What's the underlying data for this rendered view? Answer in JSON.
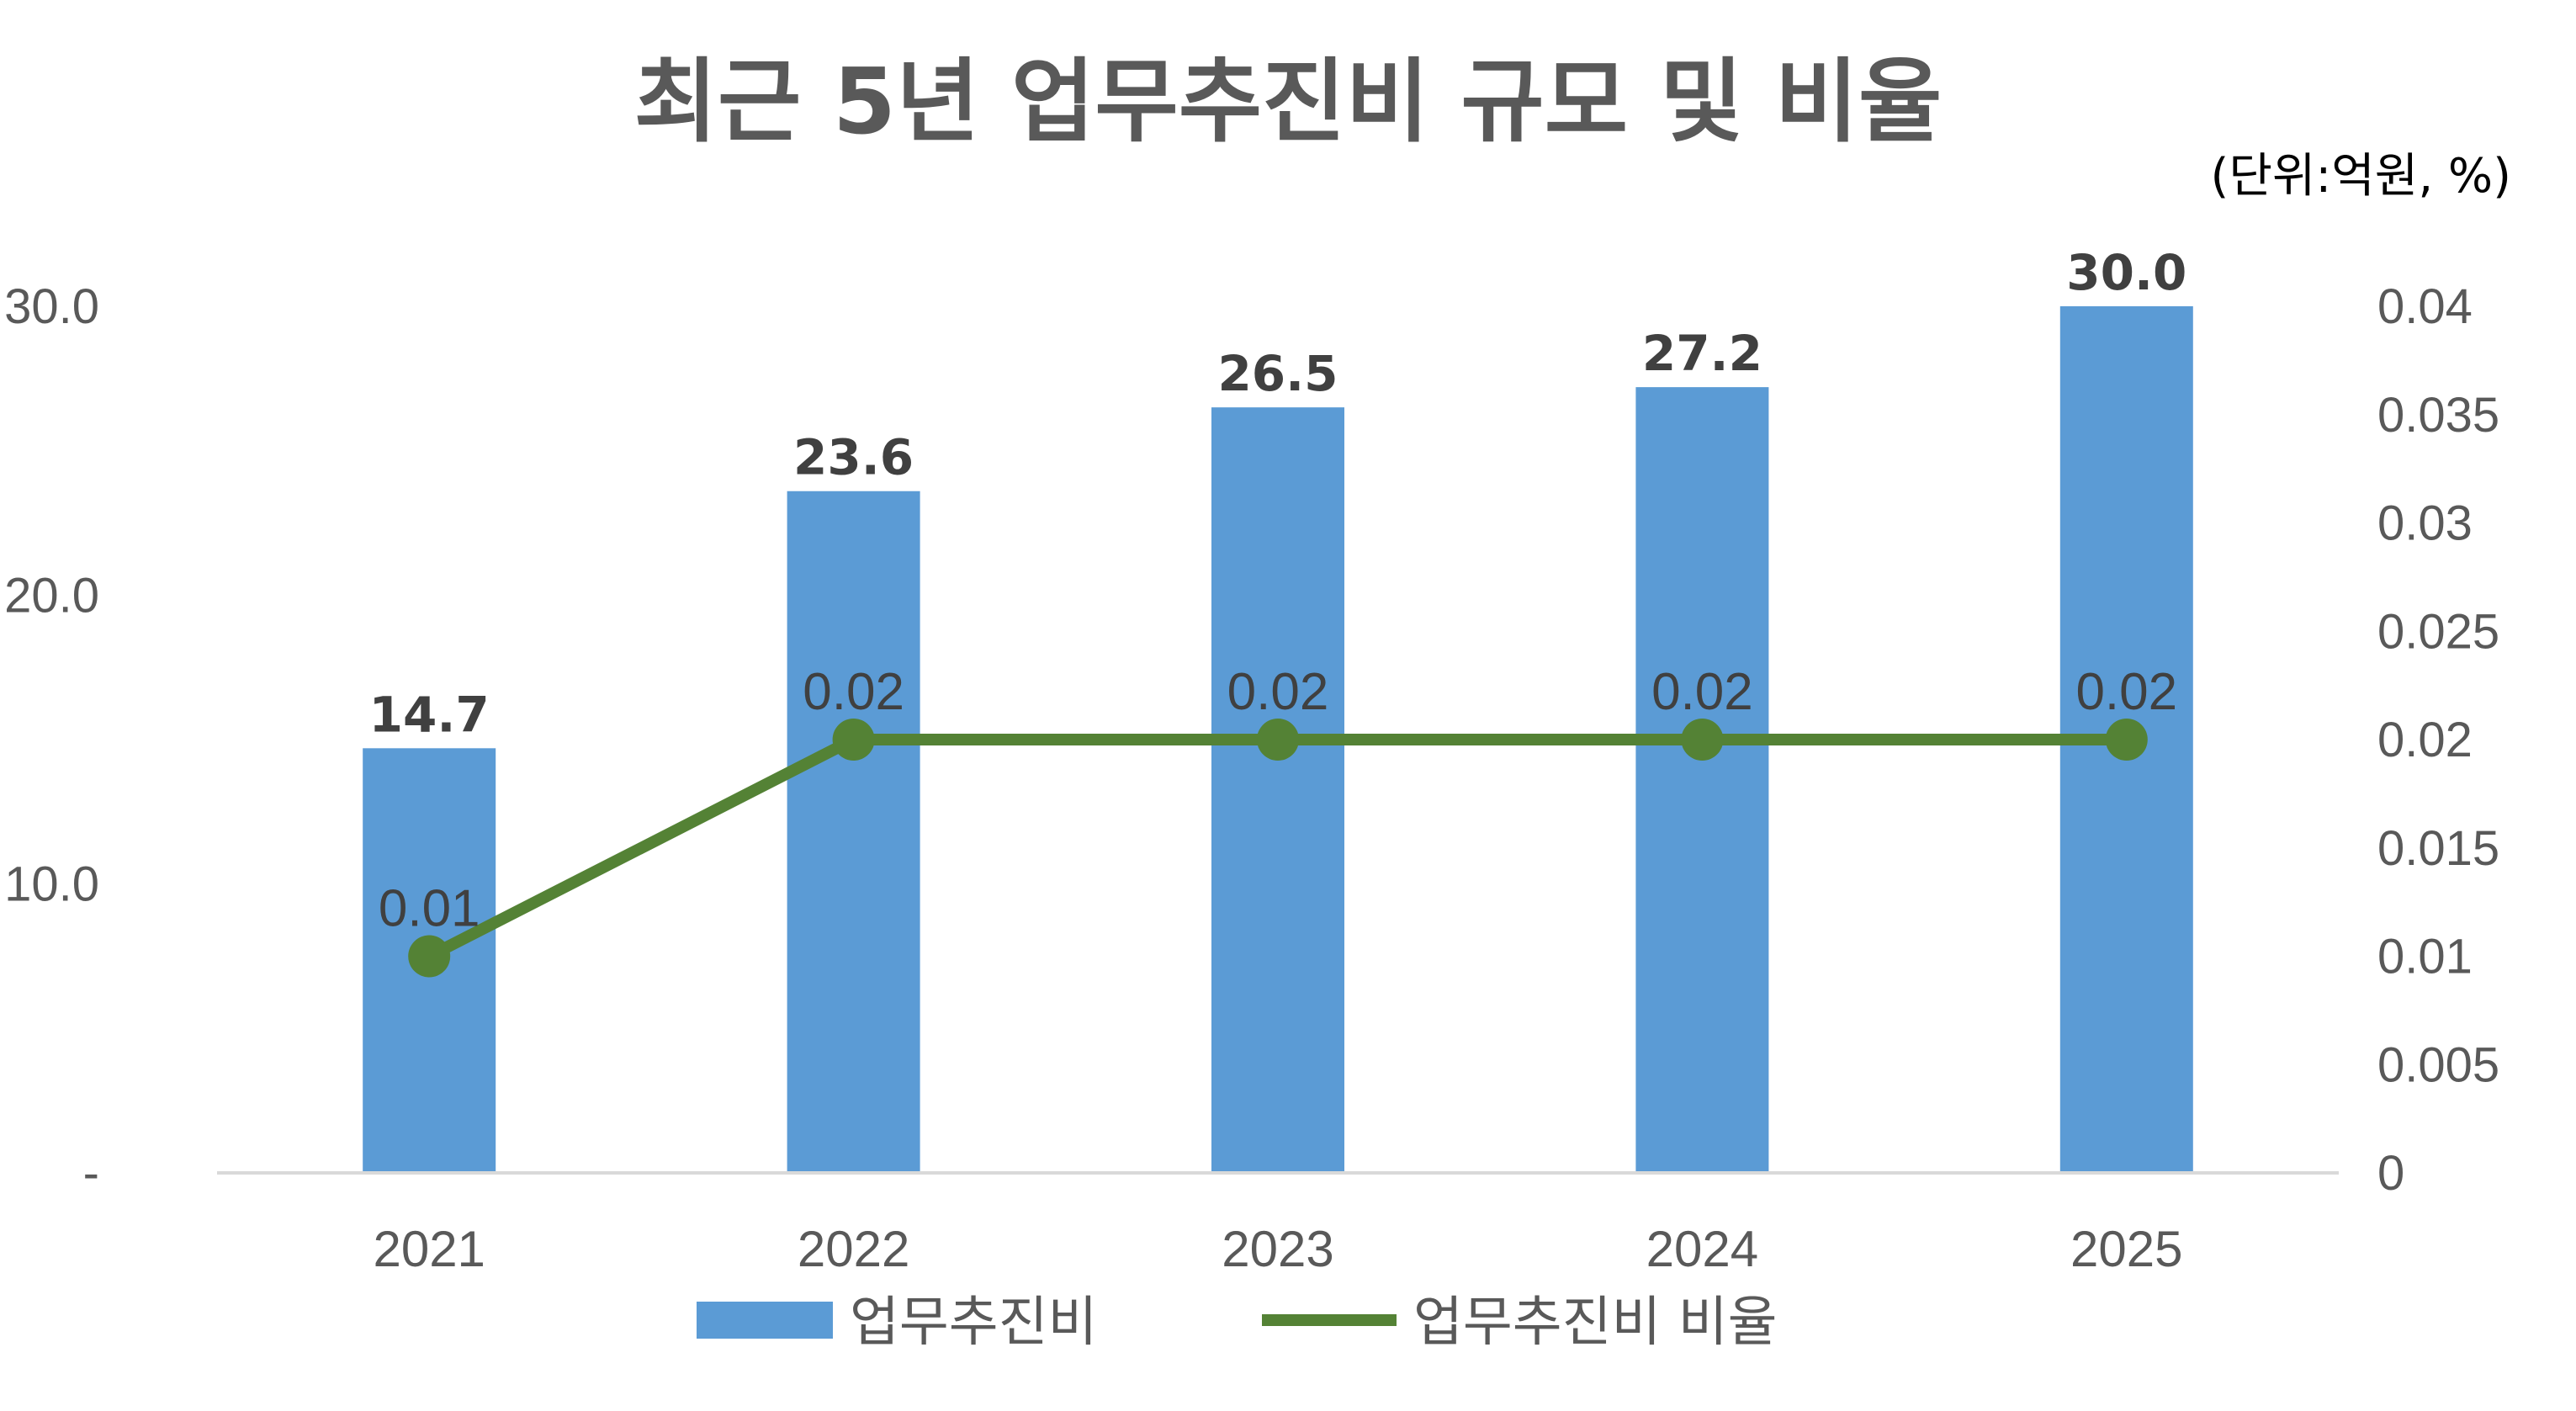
{
  "chart_data": {
    "type": "bar",
    "title": "최근 5년 업무추진비 규모 및 비율",
    "unit_note": "(단위:억원, %)",
    "categories": [
      "2021",
      "2022",
      "2023",
      "2024",
      "2025"
    ],
    "series": [
      {
        "name": "업무추진비",
        "type": "bar",
        "axis": "left",
        "color": "#5B9BD5",
        "values": [
          14.7,
          23.6,
          26.5,
          27.2,
          30.0
        ],
        "data_labels": [
          "14.7",
          "23.6",
          "26.5",
          "27.2",
          "30.0"
        ]
      },
      {
        "name": "업무추진비 비율",
        "type": "line",
        "axis": "right",
        "color": "#548235",
        "values": [
          0.01,
          0.02,
          0.02,
          0.02,
          0.02
        ],
        "data_labels": [
          "0.01",
          "0.02",
          "0.02",
          "0.02",
          "0.02"
        ]
      }
    ],
    "y_left": {
      "range": [
        0,
        30
      ],
      "ticks": [
        0,
        10,
        20,
        30
      ],
      "tick_labels": [
        "-",
        "10.0",
        "20.0",
        "30.0"
      ]
    },
    "y_right": {
      "range": [
        0,
        0.04
      ],
      "ticks": [
        0,
        0.005,
        0.01,
        0.015,
        0.02,
        0.025,
        0.03,
        0.035,
        0.04
      ],
      "tick_labels": [
        "0",
        "0.005",
        "0.01",
        "0.015",
        "0.02",
        "0.025",
        "0.03",
        "0.035",
        "0.04"
      ]
    },
    "grid": false,
    "legend": "bottom"
  }
}
